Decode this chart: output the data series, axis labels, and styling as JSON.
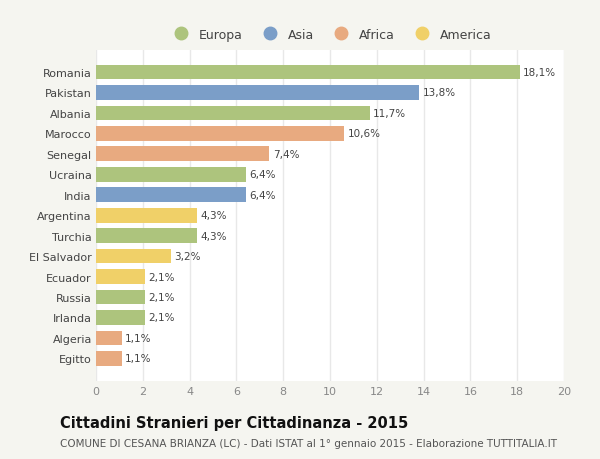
{
  "categories": [
    "Romania",
    "Pakistan",
    "Albania",
    "Marocco",
    "Senegal",
    "Ucraina",
    "India",
    "Argentina",
    "Turchia",
    "El Salvador",
    "Ecuador",
    "Russia",
    "Irlanda",
    "Algeria",
    "Egitto"
  ],
  "values": [
    18.1,
    13.8,
    11.7,
    10.6,
    7.4,
    6.4,
    6.4,
    4.3,
    4.3,
    3.2,
    2.1,
    2.1,
    2.1,
    1.1,
    1.1
  ],
  "labels": [
    "18,1%",
    "13,8%",
    "11,7%",
    "10,6%",
    "7,4%",
    "6,4%",
    "6,4%",
    "4,3%",
    "4,3%",
    "3,2%",
    "2,1%",
    "2,1%",
    "2,1%",
    "1,1%",
    "1,1%"
  ],
  "continents": [
    "Europa",
    "Asia",
    "Europa",
    "Africa",
    "Africa",
    "Europa",
    "Asia",
    "America",
    "Europa",
    "America",
    "America",
    "Europa",
    "Europa",
    "Africa",
    "Africa"
  ],
  "colors": {
    "Europa": "#adc47d",
    "Asia": "#7b9ec8",
    "Africa": "#e8aa80",
    "America": "#f0d068"
  },
  "legend_order": [
    "Europa",
    "Asia",
    "Africa",
    "America"
  ],
  "title": "Cittadini Stranieri per Cittadinanza - 2015",
  "subtitle": "COMUNE DI CESANA BRIANZA (LC) - Dati ISTAT al 1° gennaio 2015 - Elaborazione TUTTITALIA.IT",
  "xlim": [
    0,
    20
  ],
  "xticks": [
    0,
    2,
    4,
    6,
    8,
    10,
    12,
    14,
    16,
    18,
    20
  ],
  "plot_bg_color": "#ffffff",
  "fig_bg_color": "#f5f5f0",
  "grid_color": "#e8e8e8",
  "bar_height": 0.72,
  "title_fontsize": 10.5,
  "subtitle_fontsize": 7.5,
  "label_fontsize": 7.5,
  "tick_fontsize": 8,
  "legend_fontsize": 9
}
